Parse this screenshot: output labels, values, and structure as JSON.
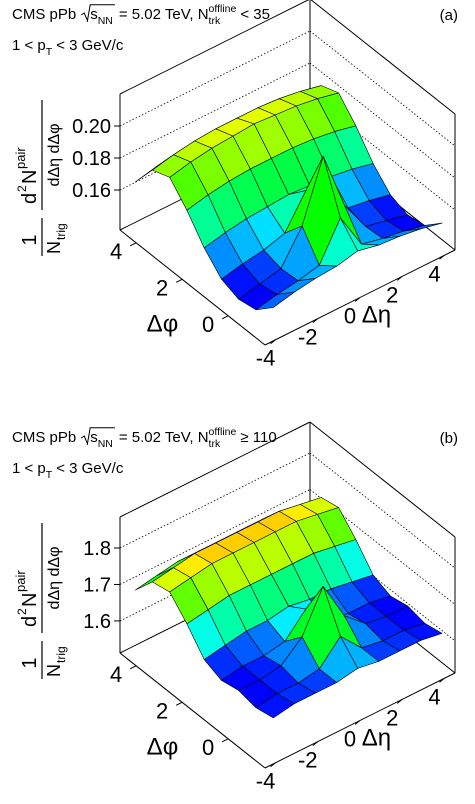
{
  "chart_data": [
    {
      "type": "surface3d",
      "title": [
        "CMS pPb",
        "s",
        "NN",
        "= 5.02 TeV, N",
        "trk",
        "offline",
        "< 35"
      ],
      "subtitle": [
        "1 < p",
        "T",
        "< 3 GeV/c"
      ],
      "panel_label": "(a)",
      "x_label": "Δη",
      "y_label": "Δφ",
      "z_label": {
        "num1": "1",
        "den1": "N",
        "den1_sub": "trig",
        "num2": [
          "d",
          "2",
          "N",
          "pair"
        ],
        "den2": "dΔη dΔφ"
      },
      "x": [
        -4,
        -3,
        -2,
        -1,
        0,
        1,
        2,
        3,
        4
      ],
      "y": [
        -1.5,
        -0.75,
        0,
        0.75,
        1.5,
        2.25,
        3,
        3.75,
        4.5
      ],
      "z": [
        [
          0.154,
          0.157,
          0.159,
          0.16,
          0.163,
          0.16,
          0.159,
          0.157,
          0.154
        ],
        [
          0.144,
          0.147,
          0.149,
          0.152,
          0.175,
          0.152,
          0.149,
          0.147,
          0.144
        ],
        [
          0.142,
          0.145,
          0.148,
          0.168,
          0.205,
          0.168,
          0.148,
          0.145,
          0.142
        ],
        [
          0.146,
          0.149,
          0.151,
          0.155,
          0.175,
          0.155,
          0.151,
          0.149,
          0.146
        ],
        [
          0.157,
          0.16,
          0.162,
          0.163,
          0.164,
          0.163,
          0.162,
          0.16,
          0.157
        ],
        [
          0.172,
          0.175,
          0.177,
          0.178,
          0.178,
          0.178,
          0.177,
          0.175,
          0.172
        ],
        [
          0.184,
          0.187,
          0.189,
          0.19,
          0.191,
          0.19,
          0.189,
          0.187,
          0.184
        ],
        [
          0.18,
          0.183,
          0.185,
          0.186,
          0.186,
          0.186,
          0.185,
          0.183,
          0.18
        ],
        [
          0.164,
          0.167,
          0.169,
          0.17,
          0.17,
          0.17,
          0.169,
          0.167,
          0.164
        ]
      ],
      "xlim": [
        -4.5,
        4.5
      ],
      "ylim": [
        -1.6,
        4.7
      ],
      "zlim": [
        0.135,
        0.22
      ],
      "xticks": [
        -4,
        -2,
        0,
        2,
        4
      ],
      "yticks": [
        0,
        2,
        4
      ],
      "zticks": [
        0.16,
        0.18,
        {
          "value": 0.2,
          "label": "0.20"
        }
      ]
    },
    {
      "type": "surface3d",
      "title": [
        "CMS pPb",
        "s",
        "NN",
        "= 5.02 TeV, N",
        "trk",
        "offline",
        "≥ 110"
      ],
      "subtitle": [
        "1 < p",
        "T",
        "< 3 GeV/c"
      ],
      "panel_label": "(b)",
      "x_label": "Δη",
      "y_label": "Δφ",
      "z_label": {
        "num1": "1",
        "den1": "N",
        "den1_sub": "trig",
        "num2": [
          "d",
          "2",
          "N",
          "pair"
        ],
        "den2": "dΔη dΔφ"
      },
      "x": [
        -4,
        -3,
        -2,
        -1,
        0,
        1,
        2,
        3,
        4
      ],
      "y": [
        -1.5,
        -0.75,
        0,
        0.75,
        1.5,
        2.25,
        3,
        3.75,
        4.5
      ],
      "z": [
        [
          1.63,
          1.64,
          1.64,
          1.64,
          1.65,
          1.64,
          1.64,
          1.64,
          1.63
        ],
        [
          1.62,
          1.63,
          1.63,
          1.64,
          1.7,
          1.64,
          1.63,
          1.63,
          1.62
        ],
        [
          1.63,
          1.63,
          1.64,
          1.69,
          1.8,
          1.69,
          1.64,
          1.63,
          1.63
        ],
        [
          1.62,
          1.63,
          1.63,
          1.64,
          1.7,
          1.64,
          1.63,
          1.63,
          1.62
        ],
        [
          1.64,
          1.65,
          1.66,
          1.66,
          1.67,
          1.66,
          1.66,
          1.65,
          1.64
        ],
        [
          1.7,
          1.71,
          1.72,
          1.72,
          1.72,
          1.72,
          1.72,
          1.71,
          1.7
        ],
        [
          1.75,
          1.76,
          1.77,
          1.77,
          1.77,
          1.77,
          1.77,
          1.76,
          1.75
        ],
        [
          1.74,
          1.75,
          1.76,
          1.76,
          1.76,
          1.76,
          1.76,
          1.75,
          1.74
        ],
        [
          1.68,
          1.69,
          1.7,
          1.7,
          1.7,
          1.7,
          1.7,
          1.69,
          1.68
        ]
      ],
      "xlim": [
        -4.5,
        4.5
      ],
      "ylim": [
        -1.6,
        4.7
      ],
      "zlim": [
        1.512,
        1.885
      ],
      "xticks": [
        -4,
        -2,
        0,
        2,
        4
      ],
      "yticks": [
        0,
        2,
        4
      ],
      "zticks": [
        1.6,
        1.7,
        1.8
      ]
    }
  ]
}
